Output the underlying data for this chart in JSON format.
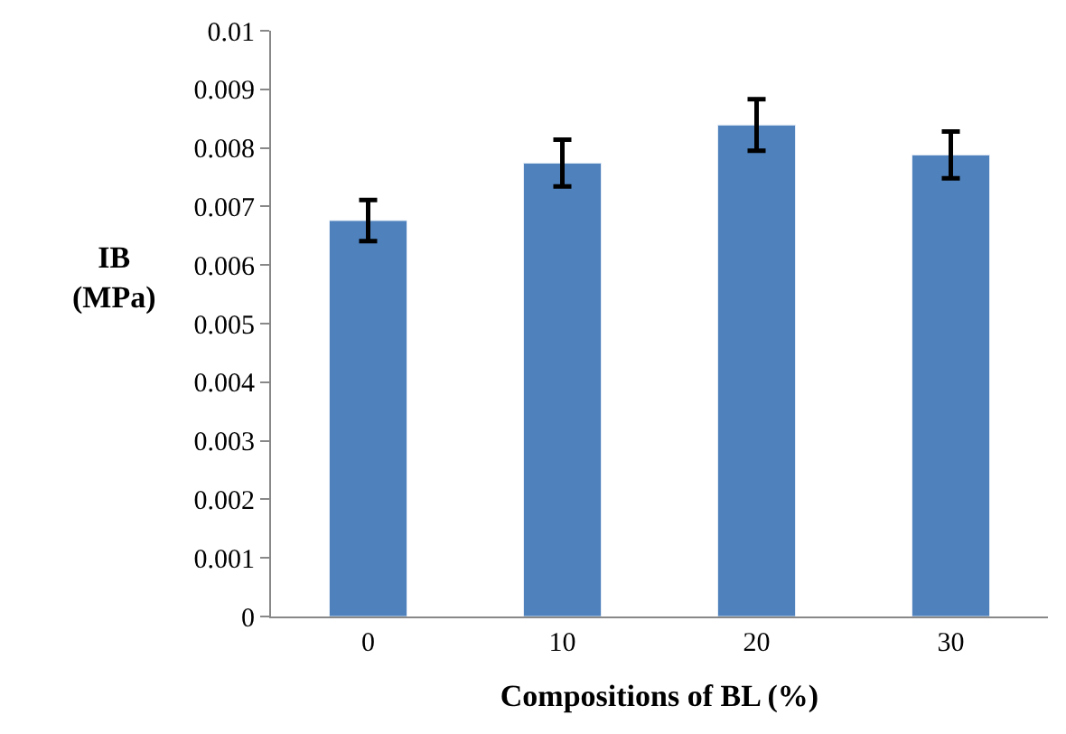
{
  "chart_data": {
    "type": "bar",
    "xlabel": "Compositions of BL (%)",
    "ylabel": "IB\n(MPa)",
    "categories": [
      "0",
      "10",
      "20",
      "30"
    ],
    "values": [
      0.00676,
      0.00774,
      0.00839,
      0.00788
    ],
    "errors": [
      0.00035,
      0.0004,
      0.00044,
      0.0004
    ],
    "color": "#4f81bd",
    "ylim": [
      0,
      0.01
    ],
    "yticks": [
      0,
      0.001,
      0.002,
      0.003,
      0.004,
      0.005,
      0.006,
      0.007,
      0.008,
      0.009,
      0.01
    ],
    "legend": false
  }
}
